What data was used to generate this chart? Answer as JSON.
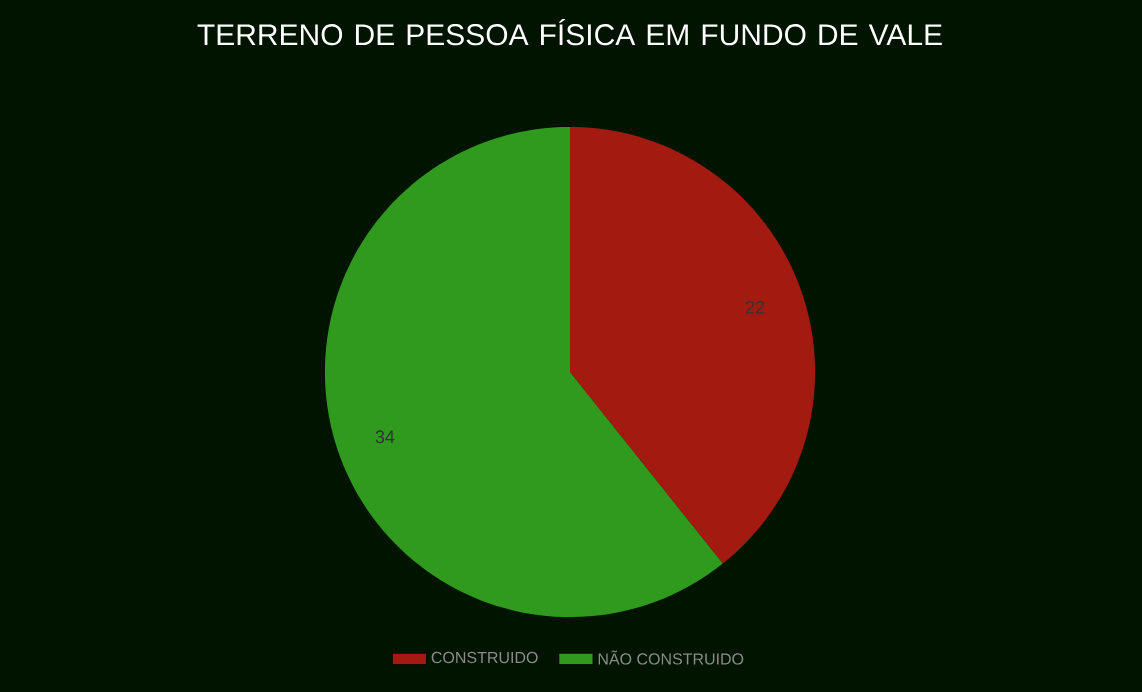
{
  "chart_data": {
    "type": "pie",
    "title": "TERRENO DE PESSOA FÍSICA EM FUNDO DE VALE",
    "categories": [
      "CONSTRUIDO",
      "NÃO CONSTRUIDO"
    ],
    "values": [
      22,
      34
    ],
    "colors": [
      "#a31a10",
      "#2f9a1e"
    ],
    "data_labels": true,
    "legend": "bottom"
  }
}
